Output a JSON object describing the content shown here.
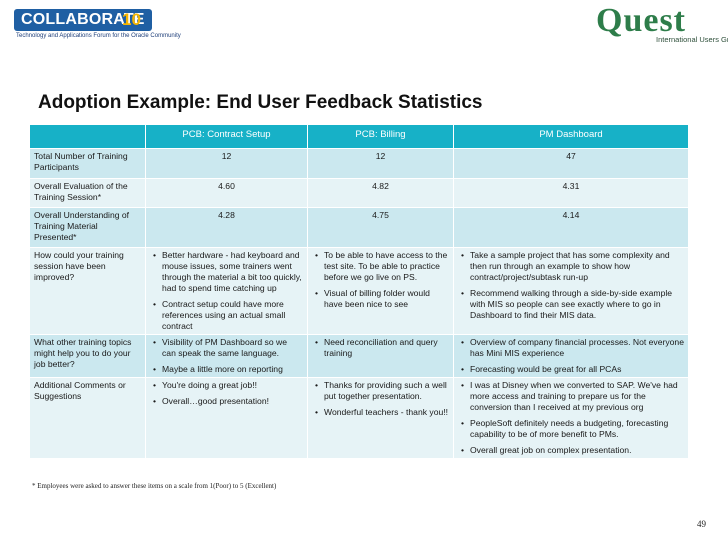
{
  "header": {
    "collaborate_word": "COLLABORATE",
    "collaborate_num": "10",
    "collaborate_tagline": "Technology and Applications Forum for the Oracle Community",
    "quest_word": "Quest",
    "quest_tagline": "International Users Group"
  },
  "title": "Adoption Example:  End User Feedback Statistics",
  "table": {
    "columns": [
      "",
      "PCB: Contract Setup",
      "PCB: Billing",
      "PM Dashboard"
    ],
    "numeric_rows": [
      {
        "label": "Total Number of Training Participants",
        "values": [
          "12",
          "12",
          "47"
        ]
      },
      {
        "label": "Overall Evaluation of the Training Session*",
        "values": [
          "4.60",
          "4.82",
          "4.31"
        ]
      },
      {
        "label": "Overall Understanding of Training Material Presented*",
        "values": [
          "4.28",
          "4.75",
          "4.14"
        ]
      }
    ],
    "text_rows": [
      {
        "label": "How could your training session have been improved?",
        "cells": [
          [
            "Better hardware - had keyboard and mouse issues, some trainers went through the material a bit too quickly, had to spend time catching up",
            "Contract setup could have more references using an actual small contract"
          ],
          [
            "To be able to have access to the test site.  To be able to practice before we go live on PS.",
            "Visual of billing folder would have been nice to see"
          ],
          [
            "Take a sample project that has some complexity and then run through an example to show how contract/project/subtask run-up",
            "Recommend walking through a side-by-side example with MIS so people can see exactly where to go in Dashboard to find their MIS data."
          ]
        ]
      },
      {
        "label": "What other training topics might help you to do your job better?",
        "cells": [
          [
            "Visibility of PM Dashboard so we can speak the same language.",
            "Maybe a little more on reporting"
          ],
          [
            "Need reconciliation and query training"
          ],
          [
            "Overview of company financial processes. Not everyone has Mini MIS experience",
            "Forecasting would be great for all PCAs"
          ]
        ]
      },
      {
        "label": "Additional Comments or Suggestions",
        "cells": [
          [
            "You're doing a great job!!",
            "Overall…good presentation!"
          ],
          [
            "Thanks for providing such a well put together presentation.",
            "Wonderful teachers - thank you!!"
          ],
          [
            "I was at Disney when we converted to SAP.  We've had more access and training to prepare us for the conversion than I received at my previous org",
            "PeopleSoft definitely needs a budgeting, forecasting capability to be of more benefit to PMs.",
            "Overall great job on complex presentation."
          ]
        ]
      }
    ]
  },
  "footnote": "* Employees were asked to answer these items on a scale from 1(Poor) to 5 (Excellent)",
  "page_number": "49",
  "colors": {
    "header": "#17b1c7",
    "row_dark": "#cbe8ef",
    "row_light": "#e6f3f6",
    "collab_blue": "#1f5fa3",
    "quest_green": "#2e7d4a"
  }
}
